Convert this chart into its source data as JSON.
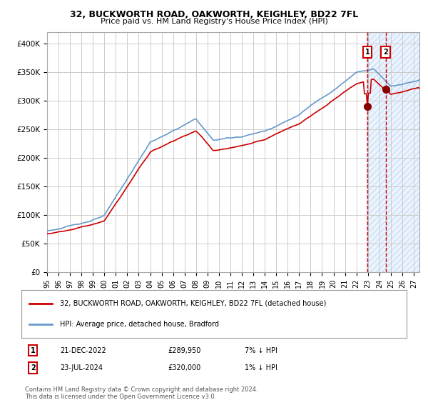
{
  "title": "32, BUCKWORTH ROAD, OAKWORTH, KEIGHLEY, BD22 7FL",
  "subtitle": "Price paid vs. HM Land Registry's House Price Index (HPI)",
  "ylim": [
    0,
    420000
  ],
  "yticks": [
    0,
    50000,
    100000,
    150000,
    200000,
    250000,
    300000,
    350000,
    400000
  ],
  "ytick_labels": [
    "£0",
    "£50K",
    "£100K",
    "£150K",
    "£200K",
    "£250K",
    "£300K",
    "£350K",
    "£400K"
  ],
  "hpi_color": "#6699cc",
  "price_color": "#cc0000",
  "grid_color": "#cccccc",
  "bg_color": "#ffffff",
  "legend_label_price": "32, BUCKWORTH ROAD, OAKWORTH, KEIGHLEY, BD22 7FL (detached house)",
  "legend_label_hpi": "HPI: Average price, detached house, Bradford",
  "sale1_date": "21-DEC-2022",
  "sale1_price": 289950,
  "sale1_year": 2022.96,
  "sale1_hpi_text": "7% ↓ HPI",
  "sale2_date": "23-JUL-2024",
  "sale2_price": 320000,
  "sale2_year": 2024.55,
  "sale2_hpi_text": "1% ↓ HPI",
  "footnote1": "Contains HM Land Registry data © Crown copyright and database right 2024.",
  "footnote2": "This data is licensed under the Open Government Licence v3.0.",
  "shade_color": "#ddeeff",
  "marker_box_color": "#cc0000",
  "xlim_start": 1995,
  "xlim_end": 2027.5
}
